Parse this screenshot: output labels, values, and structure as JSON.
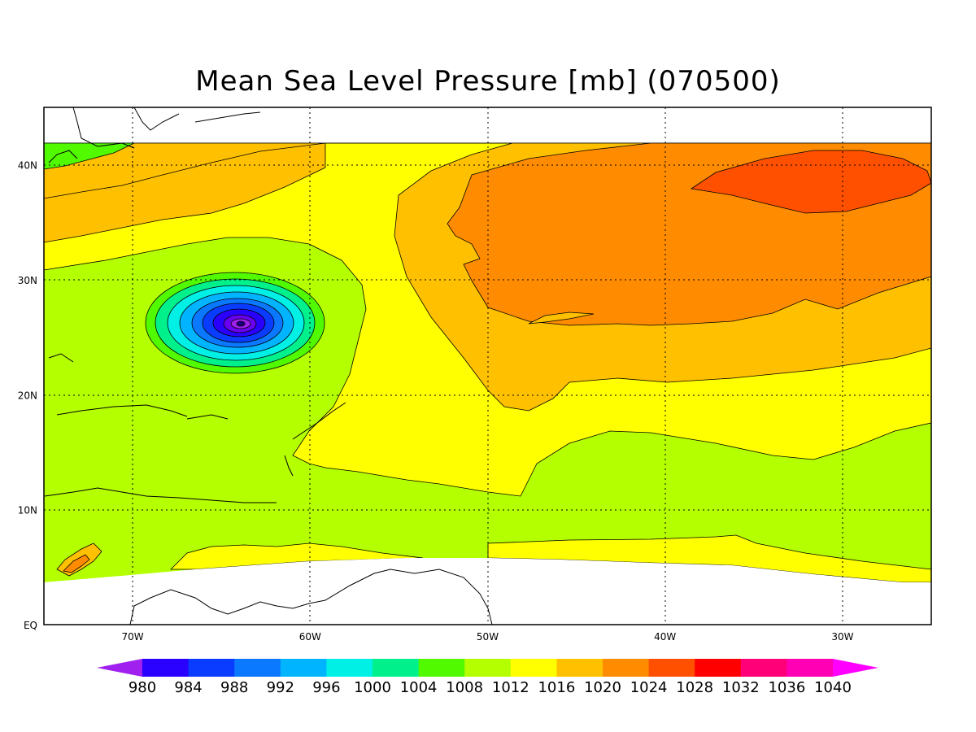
{
  "title": "Mean Sea Level Pressure [mb] (070500)",
  "map": {
    "lon_range": [
      -75,
      -25
    ],
    "lat_range": [
      0,
      45
    ],
    "lon_ticks": [
      {
        "lon": -70,
        "label": "70W"
      },
      {
        "lon": -60,
        "label": "60W"
      },
      {
        "lon": -50,
        "label": "50W"
      },
      {
        "lon": -40,
        "label": "40W"
      },
      {
        "lon": -30,
        "label": "30W"
      }
    ],
    "lat_ticks": [
      {
        "lat": 40,
        "label": "40N"
      },
      {
        "lat": 30,
        "label": "30N"
      },
      {
        "lat": 20,
        "label": "20N"
      },
      {
        "lat": 10,
        "label": "10N"
      },
      {
        "lat": 0,
        "label": "EQ"
      }
    ],
    "grid": true,
    "field_lat_range": [
      4,
      42
    ],
    "cyclone_center": {
      "lon": -64,
      "lat": 26.3,
      "min_pressure_mb": 978
    }
  },
  "colorbar": {
    "levels": [
      "980",
      "984",
      "988",
      "992",
      "996",
      "1000",
      "1004",
      "1008",
      "1012",
      "1016",
      "1020",
      "1024",
      "1028",
      "1032",
      "1036",
      "1040"
    ],
    "colors": [
      "#a020f0",
      "#2a00ff",
      "#0a3cff",
      "#0a78ff",
      "#00b4ff",
      "#00f0e6",
      "#00f08c",
      "#52fa00",
      "#b4ff00",
      "#ffff00",
      "#ffc000",
      "#ff8c00",
      "#ff5000",
      "#ff0000",
      "#ff0078",
      "#ff00b4",
      "#ff00ff"
    ],
    "extend": "both"
  }
}
